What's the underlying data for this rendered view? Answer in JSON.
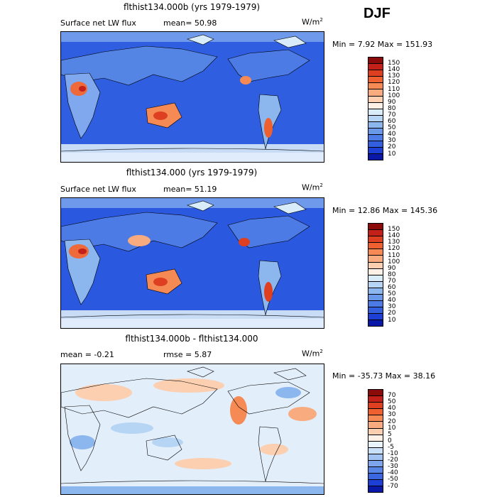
{
  "season": "DJF",
  "panels": [
    {
      "title": "flthist134.000b (yrs 1979-1979)",
      "field": "Surface net LW flux",
      "stat1": "mean=  50.98",
      "stat2": "",
      "units": "W/m",
      "units_exp": "2",
      "minmax": "Min =    7.92 Max = 151.93",
      "colorbar_labels": [
        "150",
        "140",
        "130",
        "120",
        "110",
        "100",
        "90",
        "80",
        "70",
        "60",
        "50",
        "40",
        "30",
        "20",
        "10"
      ],
      "colorbar_colors": [
        "#8b0a0a",
        "#c4201a",
        "#de3f20",
        "#ee6030",
        "#f58a55",
        "#f9ab80",
        "#fbcfb0",
        "#fdf0e6",
        "#d8ecfa",
        "#b6d5f5",
        "#8cb6ee",
        "#6a98e9",
        "#4d7be5",
        "#335fdf",
        "#1e3fd6",
        "#0a18a8"
      ]
    },
    {
      "title": "flthist134.000 (yrs 1979-1979)",
      "field": "Surface net LW flux",
      "stat1": "mean=  51.19",
      "stat2": "",
      "units": "W/m",
      "units_exp": "2",
      "minmax": "Min =  12.86 Max = 145.36",
      "colorbar_labels": [
        "150",
        "140",
        "130",
        "120",
        "110",
        "100",
        "90",
        "80",
        "70",
        "60",
        "50",
        "40",
        "30",
        "20",
        "10"
      ],
      "colorbar_colors": [
        "#8b0a0a",
        "#c4201a",
        "#de3f20",
        "#ee6030",
        "#f58a55",
        "#f9ab80",
        "#fbcfb0",
        "#fdf0e6",
        "#d8ecfa",
        "#b6d5f5",
        "#8cb6ee",
        "#6a98e9",
        "#4d7be5",
        "#335fdf",
        "#1e3fd6",
        "#0a18a8"
      ]
    },
    {
      "title": "flthist134.000b - flthist134.000",
      "field": "",
      "stat1": "mean =  -0.21",
      "stat2": "rmse =   5.87",
      "units": "W/m",
      "units_exp": "2",
      "minmax": "Min = -35.73 Max =  38.16",
      "colorbar_labels": [
        "70",
        "50",
        "40",
        "30",
        "20",
        "10",
        "5",
        "0",
        "-5",
        "-10",
        "-20",
        "-30",
        "-40",
        "-50",
        "-70"
      ],
      "colorbar_colors": [
        "#8b0a0a",
        "#c4201a",
        "#de3f20",
        "#ee6030",
        "#f58a55",
        "#f9ab80",
        "#fbcfb0",
        "#fdf0e6",
        "#e8f3fc",
        "#c8e0f8",
        "#a2c3f1",
        "#7ca5eb",
        "#5886e6",
        "#3a66e0",
        "#1e3fd6",
        "#0a18a8"
      ]
    }
  ],
  "chart_data": [
    {
      "type": "heatmap",
      "title": "flthist134.000b (yrs 1979-1979)",
      "variable": "Surface net LW flux",
      "units": "W/m2",
      "mean": 50.98,
      "min": 7.92,
      "max": 151.93,
      "levels": [
        10,
        20,
        30,
        40,
        50,
        60,
        70,
        80,
        90,
        100,
        110,
        120,
        130,
        140,
        150
      ]
    },
    {
      "type": "heatmap",
      "title": "flthist134.000 (yrs 1979-1979)",
      "variable": "Surface net LW flux",
      "units": "W/m2",
      "mean": 51.19,
      "min": 12.86,
      "max": 145.36,
      "levels": [
        10,
        20,
        30,
        40,
        50,
        60,
        70,
        80,
        90,
        100,
        110,
        120,
        130,
        140,
        150
      ]
    },
    {
      "type": "heatmap",
      "title": "flthist134.000b - flthist134.000",
      "units": "W/m2",
      "mean": -0.21,
      "rmse": 5.87,
      "min": -35.73,
      "max": 38.16,
      "levels": [
        -70,
        -50,
        -40,
        -30,
        -20,
        -10,
        -5,
        0,
        5,
        10,
        20,
        30,
        40,
        50,
        70
      ]
    }
  ]
}
